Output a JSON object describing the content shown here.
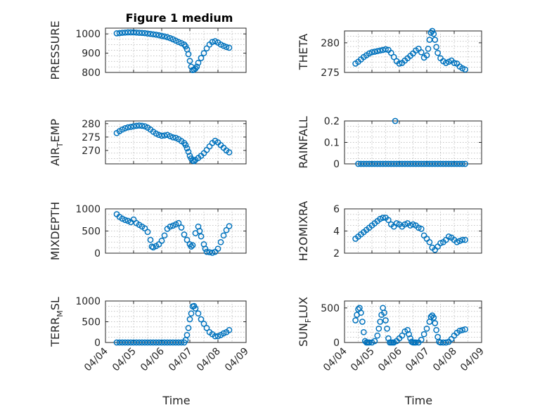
{
  "chart_data": [
    {
      "type": "scatter",
      "title": "Figure 1 medium",
      "ylabel": "PRESSURE",
      "yticks": [
        "800",
        "900",
        "1000"
      ],
      "ylim": [
        800,
        1030
      ],
      "xlim": [
        4,
        9
      ],
      "xticks": [
        4,
        5,
        6,
        7,
        8,
        9
      ],
      "x": [
        4.4,
        4.5,
        4.6,
        4.7,
        4.8,
        4.9,
        5.0,
        5.1,
        5.2,
        5.3,
        5.4,
        5.5,
        5.6,
        5.7,
        5.8,
        5.9,
        6.0,
        6.1,
        6.2,
        6.3,
        6.4,
        6.5,
        6.6,
        6.7,
        6.8,
        6.85,
        6.9,
        6.95,
        7.0,
        7.05,
        7.1,
        7.15,
        7.2,
        7.25,
        7.3,
        7.4,
        7.5,
        7.6,
        7.7,
        7.8,
        7.9,
        8.0,
        8.1,
        8.2,
        8.3,
        8.4
      ],
      "y": [
        1003,
        1004,
        1006,
        1007,
        1008,
        1008,
        1008,
        1007,
        1006,
        1005,
        1004,
        1002,
        1000,
        998,
        996,
        993,
        990,
        987,
        983,
        978,
        972,
        965,
        958,
        952,
        945,
        935,
        920,
        895,
        860,
        830,
        812,
        815,
        820,
        830,
        850,
        875,
        900,
        925,
        945,
        958,
        962,
        955,
        945,
        938,
        932,
        928
      ]
    },
    {
      "type": "scatter",
      "ylabel": "THETA",
      "yticks": [
        "275",
        "280"
      ],
      "ylim": [
        275,
        282
      ],
      "xlim": [
        4,
        9
      ],
      "xticks": [
        4,
        5,
        6,
        7,
        8,
        9
      ],
      "x": [
        4.4,
        4.5,
        4.6,
        4.7,
        4.8,
        4.9,
        5.0,
        5.1,
        5.2,
        5.3,
        5.4,
        5.5,
        5.6,
        5.7,
        5.8,
        5.9,
        6.0,
        6.1,
        6.2,
        6.3,
        6.4,
        6.5,
        6.6,
        6.7,
        6.8,
        6.9,
        7.0,
        7.05,
        7.1,
        7.15,
        7.2,
        7.25,
        7.3,
        7.35,
        7.4,
        7.5,
        7.6,
        7.7,
        7.8,
        7.9,
        8.0,
        8.1,
        8.2,
        8.3,
        8.4
      ],
      "y": [
        276.5,
        276.8,
        277.2,
        277.6,
        277.9,
        278.2,
        278.4,
        278.5,
        278.6,
        278.7,
        278.8,
        278.9,
        278.8,
        278.3,
        277.6,
        276.9,
        276.5,
        276.6,
        277.0,
        277.4,
        277.8,
        278.2,
        278.7,
        279.0,
        278.4,
        277.5,
        277.9,
        279.0,
        280.5,
        281.7,
        282.0,
        281.5,
        280.5,
        279.3,
        278.3,
        277.4,
        276.9,
        276.6,
        276.8,
        277.0,
        276.6,
        276.5,
        276.0,
        275.7,
        275.5
      ]
    },
    {
      "type": "scatter",
      "ylabel": "AIR_TEMP",
      "ylabel_main": "AIR",
      "ylabel_sub": "T",
      "ylabel_rest": "EMP",
      "yticks": [
        "270",
        "275",
        "280"
      ],
      "ylim": [
        265,
        281
      ],
      "xlim": [
        4,
        9
      ],
      "xticks": [
        4,
        5,
        6,
        7,
        8,
        9
      ],
      "x": [
        4.4,
        4.5,
        4.6,
        4.7,
        4.8,
        4.9,
        5.0,
        5.1,
        5.2,
        5.3,
        5.4,
        5.5,
        5.6,
        5.7,
        5.8,
        5.9,
        6.0,
        6.1,
        6.2,
        6.3,
        6.4,
        6.5,
        6.6,
        6.7,
        6.8,
        6.85,
        6.9,
        6.95,
        7.0,
        7.05,
        7.1,
        7.15,
        7.2,
        7.3,
        7.4,
        7.5,
        7.6,
        7.7,
        7.8,
        7.9,
        8.0,
        8.1,
        8.2,
        8.3,
        8.4
      ],
      "y": [
        276.5,
        277.2,
        277.8,
        278.3,
        278.6,
        278.8,
        279.0,
        279.2,
        279.3,
        279.2,
        279.0,
        278.5,
        277.8,
        277.0,
        276.3,
        275.8,
        275.5,
        275.6,
        275.8,
        275.3,
        274.9,
        274.7,
        274.2,
        273.5,
        272.8,
        272.0,
        270.8,
        269.5,
        268.0,
        267.0,
        266.2,
        266.0,
        266.5,
        267.2,
        268.0,
        269.0,
        270.2,
        271.5,
        272.8,
        273.6,
        273.0,
        272.0,
        271.0,
        270.0,
        269.3
      ]
    },
    {
      "type": "scatter",
      "ylabel": "RAINFALL",
      "yticks": [
        "0",
        "0.1",
        "0.2"
      ],
      "ylim": [
        0,
        0.2
      ],
      "xlim": [
        4,
        9
      ],
      "xticks": [
        4,
        5,
        6,
        7,
        8,
        9
      ],
      "x": [
        4.5,
        4.6,
        4.7,
        4.8,
        4.9,
        5.0,
        5.1,
        5.2,
        5.3,
        5.4,
        5.5,
        5.6,
        5.7,
        5.8,
        5.9,
        6.0,
        6.1,
        6.2,
        6.3,
        6.4,
        6.5,
        6.6,
        6.7,
        6.8,
        6.9,
        7.0,
        7.1,
        7.2,
        7.3,
        7.4,
        7.5,
        7.6,
        7.7,
        7.8,
        7.9,
        8.0,
        8.1,
        8.2,
        8.3,
        8.4,
        5.85
      ],
      "y": [
        0,
        0,
        0,
        0,
        0,
        0,
        0,
        0,
        0,
        0,
        0,
        0,
        0,
        0,
        0,
        0,
        0,
        0,
        0,
        0,
        0,
        0,
        0,
        0,
        0,
        0,
        0,
        0,
        0,
        0,
        0,
        0,
        0,
        0,
        0,
        0,
        0,
        0,
        0,
        0,
        0.2
      ]
    },
    {
      "type": "scatter",
      "ylabel": "MIXDEPTH",
      "yticks": [
        "0",
        "500",
        "1000"
      ],
      "ylim": [
        0,
        1000
      ],
      "xlim": [
        4,
        9
      ],
      "xticks": [
        4,
        5,
        6,
        7,
        8,
        9
      ],
      "x": [
        4.4,
        4.5,
        4.6,
        4.7,
        4.8,
        4.9,
        5.0,
        5.1,
        5.2,
        5.3,
        5.4,
        5.5,
        5.6,
        5.65,
        5.7,
        5.8,
        5.9,
        6.0,
        6.1,
        6.2,
        6.3,
        6.4,
        6.5,
        6.6,
        6.7,
        6.8,
        6.9,
        7.0,
        7.05,
        7.1,
        7.2,
        7.3,
        7.35,
        7.4,
        7.5,
        7.55,
        7.6,
        7.7,
        7.8,
        7.9,
        8.0,
        8.1,
        8.2,
        8.3,
        8.4
      ],
      "y": [
        880,
        820,
        780,
        750,
        730,
        700,
        760,
        680,
        640,
        600,
        560,
        480,
        300,
        150,
        130,
        160,
        200,
        280,
        400,
        550,
        600,
        620,
        650,
        680,
        580,
        420,
        300,
        200,
        150,
        180,
        450,
        600,
        500,
        380,
        200,
        100,
        30,
        20,
        10,
        30,
        100,
        250,
        400,
        520,
        610
      ]
    },
    {
      "type": "scatter",
      "ylabel": "H2OMIXRA",
      "yticks": [
        "2",
        "4",
        "6"
      ],
      "ylim": [
        2,
        6
      ],
      "xlim": [
        4,
        9
      ],
      "xticks": [
        4,
        5,
        6,
        7,
        8,
        9
      ],
      "x": [
        4.4,
        4.5,
        4.6,
        4.7,
        4.8,
        4.9,
        5.0,
        5.1,
        5.2,
        5.3,
        5.4,
        5.5,
        5.6,
        5.7,
        5.8,
        5.9,
        6.0,
        6.1,
        6.2,
        6.3,
        6.4,
        6.5,
        6.6,
        6.7,
        6.8,
        6.9,
        7.0,
        7.1,
        7.2,
        7.3,
        7.4,
        7.5,
        7.6,
        7.7,
        7.8,
        7.9,
        8.0,
        8.1,
        8.2,
        8.3,
        8.4
      ],
      "y": [
        3.3,
        3.5,
        3.7,
        3.9,
        4.1,
        4.3,
        4.5,
        4.7,
        4.9,
        5.1,
        5.2,
        5.2,
        5.0,
        4.6,
        4.4,
        4.7,
        4.6,
        4.4,
        4.6,
        4.7,
        4.5,
        4.6,
        4.5,
        4.3,
        4.2,
        3.6,
        3.3,
        3.0,
        2.5,
        2.3,
        2.6,
        2.9,
        3.0,
        3.2,
        3.5,
        3.4,
        3.2,
        3.0,
        3.1,
        3.2,
        3.2
      ]
    },
    {
      "type": "scatter",
      "ylabel": "TERR_MSL",
      "ylabel_main": "TERR",
      "ylabel_sub": "M",
      "ylabel_rest": "SL",
      "yticks": [
        "0",
        "500",
        "1000"
      ],
      "ylim": [
        0,
        1000
      ],
      "xlim": [
        4,
        9
      ],
      "xticks": [
        4,
        5,
        6,
        7,
        8,
        9
      ],
      "x": [
        4.4,
        4.5,
        4.6,
        4.7,
        4.8,
        4.9,
        5.0,
        5.1,
        5.2,
        5.3,
        5.4,
        5.5,
        5.6,
        5.7,
        5.8,
        5.9,
        6.0,
        6.1,
        6.2,
        6.3,
        6.4,
        6.5,
        6.6,
        6.7,
        6.8,
        6.85,
        6.9,
        6.95,
        7.0,
        7.05,
        7.1,
        7.15,
        7.2,
        7.3,
        7.4,
        7.5,
        7.6,
        7.7,
        7.8,
        7.9,
        8.0,
        8.1,
        8.2,
        8.3,
        8.4
      ],
      "y": [
        0,
        0,
        0,
        0,
        0,
        0,
        0,
        0,
        0,
        0,
        0,
        0,
        0,
        0,
        0,
        0,
        0,
        0,
        0,
        0,
        0,
        0,
        0,
        0,
        0,
        60,
        180,
        350,
        560,
        700,
        870,
        880,
        820,
        700,
        560,
        450,
        350,
        250,
        200,
        150,
        150,
        180,
        220,
        250,
        300
      ]
    },
    {
      "type": "scatter",
      "ylabel": "SUN_FLUX",
      "ylabel_main": "SUN",
      "ylabel_sub": "F",
      "ylabel_rest": "LUX",
      "yticks": [
        "0",
        "500"
      ],
      "ylim": [
        0,
        600
      ],
      "xlim": [
        4,
        9
      ],
      "xticks": [
        4,
        5,
        6,
        7,
        8,
        9
      ],
      "x": [
        4.4,
        4.45,
        4.5,
        4.55,
        4.6,
        4.65,
        4.7,
        4.75,
        4.8,
        4.85,
        4.9,
        5.0,
        5.1,
        5.2,
        5.25,
        5.3,
        5.35,
        5.4,
        5.45,
        5.5,
        5.55,
        5.6,
        5.65,
        5.7,
        5.75,
        5.8,
        5.9,
        6.0,
        6.1,
        6.2,
        6.3,
        6.35,
        6.4,
        6.45,
        6.5,
        6.55,
        6.6,
        6.7,
        6.8,
        6.9,
        7.0,
        7.1,
        7.15,
        7.2,
        7.25,
        7.3,
        7.35,
        7.4,
        7.45,
        7.5,
        7.6,
        7.7,
        7.8,
        7.9,
        8.0,
        8.1,
        8.2,
        8.3,
        8.4
      ],
      "y": [
        320,
        400,
        480,
        500,
        430,
        300,
        150,
        20,
        0,
        0,
        0,
        0,
        20,
        100,
        200,
        300,
        400,
        500,
        430,
        320,
        200,
        60,
        0,
        0,
        0,
        0,
        20,
        60,
        100,
        160,
        180,
        120,
        60,
        10,
        0,
        0,
        0,
        0,
        40,
        120,
        200,
        300,
        370,
        390,
        360,
        280,
        180,
        80,
        10,
        0,
        0,
        0,
        10,
        50,
        100,
        140,
        170,
        180,
        190
      ]
    }
  ],
  "shared": {
    "xticklabels": [
      "04/04",
      "04/05",
      "04/06",
      "04/07",
      "04/08",
      "04/09"
    ],
    "xlabel": "Time",
    "grid": true,
    "marker": "open-circle",
    "color": "#0072BD"
  }
}
